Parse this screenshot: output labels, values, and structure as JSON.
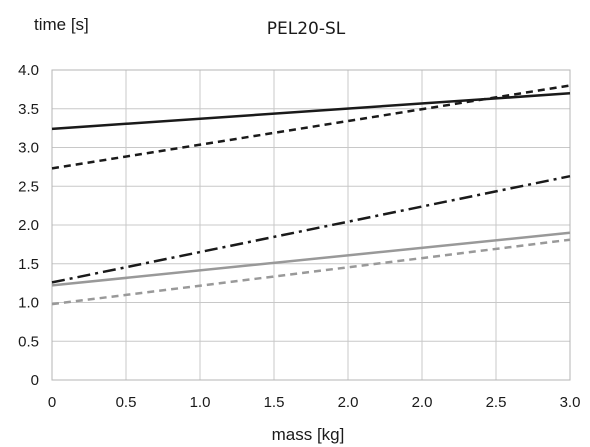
{
  "chart_data": {
    "type": "line",
    "title": "PEL20-SL",
    "ylabel": "time [s]",
    "xlabel": "mass [kg]",
    "x_tick_labels": [
      "0",
      "0.5",
      "1.0",
      "1.5",
      "2.0",
      "2.0",
      "2.5",
      "3.0"
    ],
    "y_tick_labels": [
      "0",
      "0.5",
      "1.0",
      "1.5",
      "2.0",
      "2.5",
      "3.0",
      "3.5",
      "4.0"
    ],
    "xlim": [
      0,
      3.5
    ],
    "ylim": [
      0,
      4.0
    ],
    "grid": true,
    "legend": "none",
    "series": [
      {
        "color": "#1a1a1a",
        "dash": "solid",
        "x": [
          0,
          3.5
        ],
        "y": [
          3.24,
          3.7
        ]
      },
      {
        "color": "#1a1a1a",
        "dash": "dashed",
        "x": [
          0,
          3.5
        ],
        "y": [
          2.73,
          3.8
        ]
      },
      {
        "color": "#1a1a1a",
        "dash": "dash-dot",
        "x": [
          0,
          3.5
        ],
        "y": [
          1.26,
          2.63
        ]
      },
      {
        "color": "#999999",
        "dash": "solid",
        "x": [
          0,
          3.5
        ],
        "y": [
          1.22,
          1.9
        ]
      },
      {
        "color": "#999999",
        "dash": "dashed",
        "x": [
          0,
          3.5
        ],
        "y": [
          0.98,
          1.81
        ]
      }
    ]
  }
}
